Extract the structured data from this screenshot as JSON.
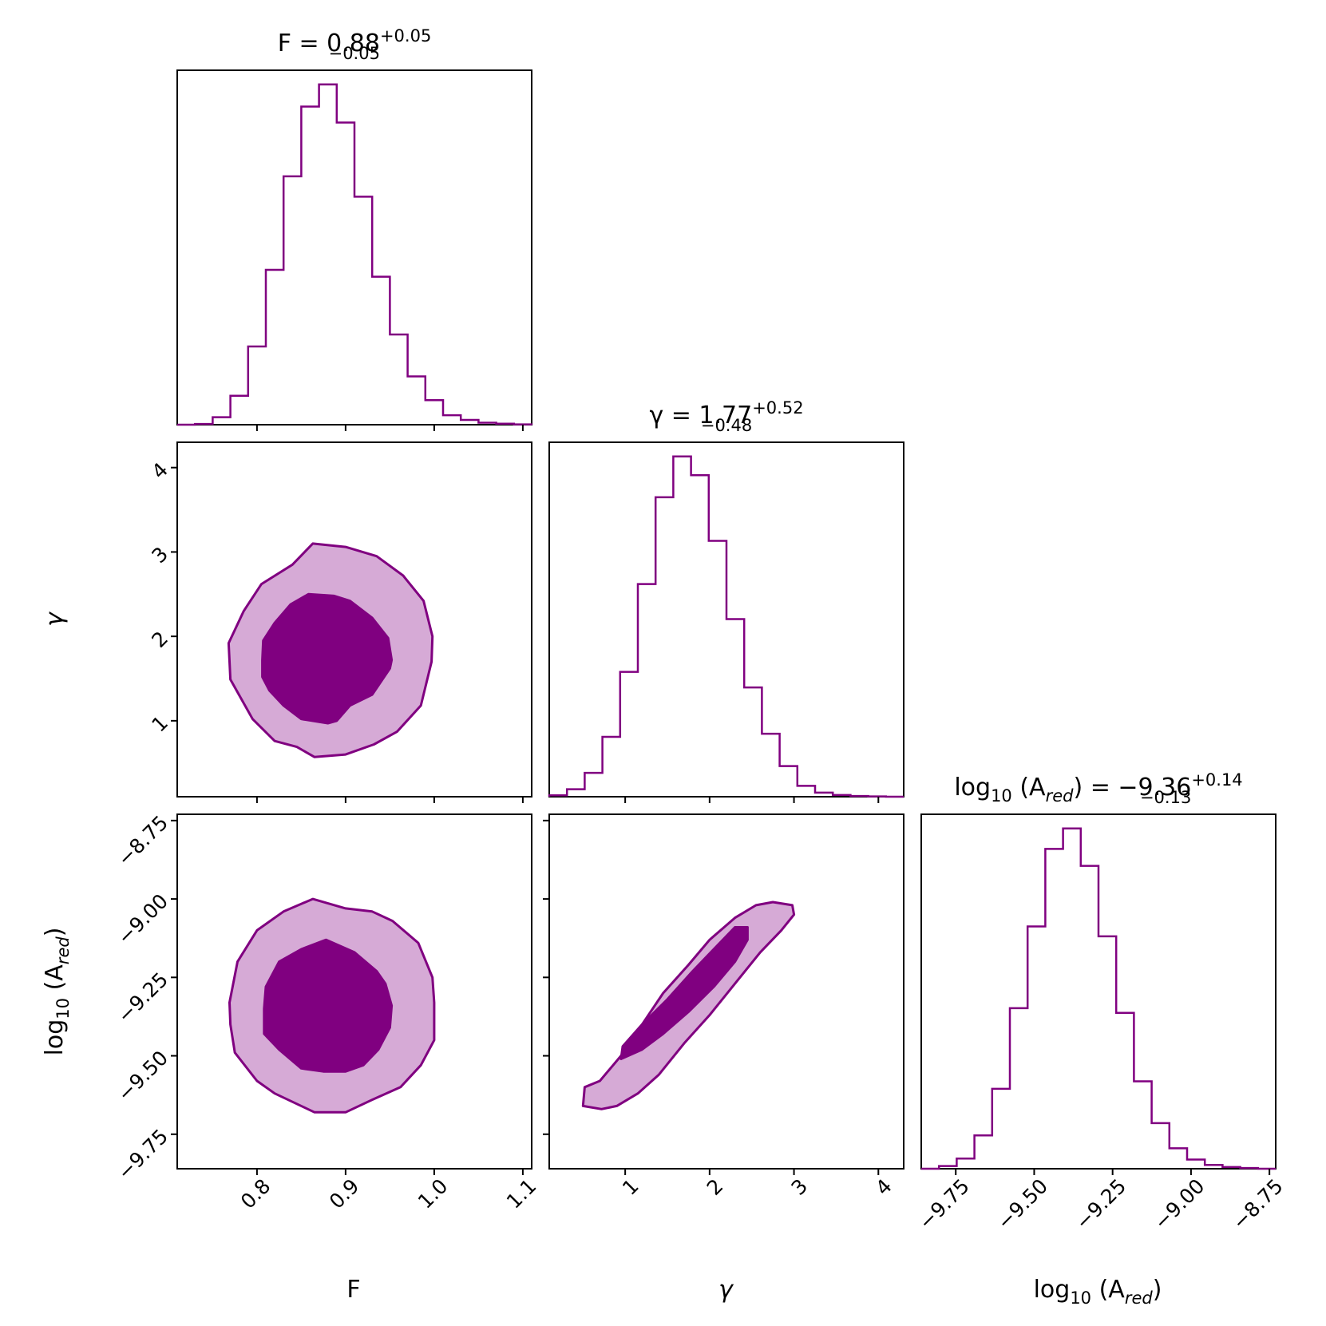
{
  "chart_data": {
    "type": "corner",
    "color": "#800080",
    "light_color": "#d6aad6",
    "parameters": [
      {
        "key": "F",
        "label_main": "F",
        "range": [
          0.71,
          1.11
        ],
        "ticks": [
          0.8,
          0.9,
          1.0,
          1.1
        ],
        "tick_labels": [
          "0.8",
          "0.9",
          "1.0",
          "1.1"
        ]
      },
      {
        "key": "gamma",
        "label_main": "γ",
        "range": [
          0.1,
          4.3
        ],
        "ticks": [
          1,
          2,
          3,
          4
        ],
        "tick_labels": [
          "1",
          "2",
          "3",
          "4"
        ]
      },
      {
        "key": "log10_A_red",
        "label_main": "log",
        "label_sub": "10",
        "label_tail": " (A",
        "label_sub2": "red",
        "label_end": ")",
        "range": [
          -9.86,
          -8.73
        ],
        "ticks": [
          -9.75,
          -9.5,
          -9.25,
          -9.0,
          -8.75
        ],
        "tick_labels": [
          "−9.75",
          "−9.50",
          "−9.25",
          "−9.00",
          "−8.75"
        ]
      }
    ],
    "titles": [
      {
        "lhs": "F = ",
        "value": "0.88",
        "plus": "+0.05",
        "minus": "−0.05"
      },
      {
        "lhs": "γ = ",
        "value": "1.77",
        "plus": "+0.52",
        "minus": "−0.48"
      },
      {
        "lhs": "log",
        "lhs_sub": "10",
        "lhs_mid": " (A",
        "lhs_sub2": "red",
        "lhs_tail": ") = ",
        "value": "−9.36",
        "plus": "+0.14",
        "minus": "−0.13"
      }
    ],
    "histograms": [
      {
        "param": "F",
        "edges": [
          0.71,
          0.73,
          0.75,
          0.77,
          0.79,
          0.81,
          0.83,
          0.85,
          0.87,
          0.89,
          0.91,
          0.93,
          0.95,
          0.97,
          0.99,
          1.01,
          1.03,
          1.05,
          1.07,
          1.09,
          1.11
        ],
        "values": [
          0.0,
          0.002,
          0.022,
          0.085,
          0.23,
          0.455,
          0.73,
          0.935,
          1.0,
          0.888,
          0.67,
          0.435,
          0.265,
          0.142,
          0.072,
          0.028,
          0.014,
          0.006,
          0.003,
          0.001
        ]
      },
      {
        "param": "gamma",
        "edges": [
          0.1,
          0.31,
          0.52,
          0.73,
          0.94,
          1.15,
          1.36,
          1.57,
          1.78,
          1.99,
          2.2,
          2.41,
          2.62,
          2.83,
          3.04,
          3.25,
          3.46,
          3.67,
          3.88,
          4.09,
          4.3
        ],
        "values": [
          0.004,
          0.022,
          0.07,
          0.176,
          0.367,
          0.625,
          0.88,
          1.0,
          0.945,
          0.752,
          0.522,
          0.321,
          0.185,
          0.09,
          0.032,
          0.012,
          0.005,
          0.002,
          0.001,
          0.0
        ]
      },
      {
        "param": "log10_A_red",
        "edges": [
          -9.86,
          -9.8035,
          -9.747,
          -9.6905,
          -9.634,
          -9.5775,
          -9.521,
          -9.4645,
          -9.408,
          -9.3515,
          -9.295,
          -9.2385,
          -9.182,
          -9.1255,
          -9.069,
          -9.0125,
          -8.956,
          -8.8995,
          -8.843,
          -8.7865,
          -8.73
        ],
        "values": [
          0.0,
          0.008,
          0.03,
          0.098,
          0.235,
          0.472,
          0.712,
          0.94,
          1.0,
          0.89,
          0.683,
          0.458,
          0.257,
          0.134,
          0.06,
          0.027,
          0.011,
          0.005,
          0.002,
          0.0
        ]
      }
    ],
    "contours": [
      {
        "x_param": "F",
        "y_param": "gamma",
        "outer": [
          [
            0.768,
            1.92
          ],
          [
            0.785,
            2.3
          ],
          [
            0.805,
            2.62
          ],
          [
            0.84,
            2.85
          ],
          [
            0.863,
            3.1
          ],
          [
            0.9,
            3.06
          ],
          [
            0.935,
            2.95
          ],
          [
            0.965,
            2.72
          ],
          [
            0.988,
            2.42
          ],
          [
            0.998,
            2.0
          ],
          [
            0.997,
            1.7
          ],
          [
            0.985,
            1.18
          ],
          [
            0.958,
            0.87
          ],
          [
            0.932,
            0.72
          ],
          [
            0.9,
            0.6
          ],
          [
            0.865,
            0.57
          ],
          [
            0.845,
            0.69
          ],
          [
            0.82,
            0.76
          ],
          [
            0.795,
            1.02
          ],
          [
            0.77,
            1.49
          ]
        ],
        "inner": [
          [
            0.806,
            1.72
          ],
          [
            0.807,
            1.95
          ],
          [
            0.82,
            2.16
          ],
          [
            0.838,
            2.38
          ],
          [
            0.858,
            2.5
          ],
          [
            0.887,
            2.48
          ],
          [
            0.905,
            2.42
          ],
          [
            0.93,
            2.22
          ],
          [
            0.948,
            1.98
          ],
          [
            0.952,
            1.72
          ],
          [
            0.95,
            1.62
          ],
          [
            0.93,
            1.31
          ],
          [
            0.905,
            1.18
          ],
          [
            0.89,
            1.0
          ],
          [
            0.88,
            0.97
          ],
          [
            0.85,
            1.02
          ],
          [
            0.83,
            1.18
          ],
          [
            0.814,
            1.36
          ],
          [
            0.806,
            1.52
          ]
        ]
      },
      {
        "x_param": "F",
        "y_param": "log10_A_red",
        "outer": [
          [
            0.769,
            -9.33
          ],
          [
            0.778,
            -9.2
          ],
          [
            0.8,
            -9.1
          ],
          [
            0.83,
            -9.04
          ],
          [
            0.863,
            -9.0
          ],
          [
            0.9,
            -9.03
          ],
          [
            0.93,
            -9.04
          ],
          [
            0.953,
            -9.07
          ],
          [
            0.982,
            -9.14
          ],
          [
            0.998,
            -9.25
          ],
          [
            1.0,
            -9.33
          ],
          [
            1.0,
            -9.45
          ],
          [
            0.985,
            -9.53
          ],
          [
            0.962,
            -9.6
          ],
          [
            0.93,
            -9.64
          ],
          [
            0.9,
            -9.68
          ],
          [
            0.865,
            -9.68
          ],
          [
            0.82,
            -9.62
          ],
          [
            0.8,
            -9.58
          ],
          [
            0.775,
            -9.49
          ],
          [
            0.77,
            -9.4
          ]
        ],
        "inner": [
          [
            0.808,
            -9.35
          ],
          [
            0.81,
            -9.28
          ],
          [
            0.825,
            -9.2
          ],
          [
            0.85,
            -9.16
          ],
          [
            0.878,
            -9.13
          ],
          [
            0.91,
            -9.17
          ],
          [
            0.935,
            -9.23
          ],
          [
            0.945,
            -9.27
          ],
          [
            0.952,
            -9.34
          ],
          [
            0.95,
            -9.41
          ],
          [
            0.937,
            -9.48
          ],
          [
            0.92,
            -9.53
          ],
          [
            0.9,
            -9.55
          ],
          [
            0.875,
            -9.55
          ],
          [
            0.85,
            -9.54
          ],
          [
            0.825,
            -9.48
          ],
          [
            0.808,
            -9.43
          ]
        ]
      },
      {
        "x_param": "gamma",
        "y_param": "log10_A_red",
        "outer": [
          [
            0.5,
            -9.66
          ],
          [
            0.72,
            -9.67
          ],
          [
            0.9,
            -9.66
          ],
          [
            1.15,
            -9.62
          ],
          [
            1.4,
            -9.56
          ],
          [
            1.7,
            -9.46
          ],
          [
            2.0,
            -9.37
          ],
          [
            2.3,
            -9.27
          ],
          [
            2.6,
            -9.17
          ],
          [
            2.85,
            -9.1
          ],
          [
            3.0,
            -9.05
          ],
          [
            2.98,
            -9.02
          ],
          [
            2.75,
            -9.01
          ],
          [
            2.55,
            -9.02
          ],
          [
            2.3,
            -9.06
          ],
          [
            2.0,
            -9.13
          ],
          [
            1.75,
            -9.21
          ],
          [
            1.45,
            -9.3
          ],
          [
            1.2,
            -9.4
          ],
          [
            0.95,
            -9.5
          ],
          [
            0.7,
            -9.58
          ],
          [
            0.52,
            -9.6
          ]
        ],
        "inner": [
          [
            0.95,
            -9.51
          ],
          [
            1.2,
            -9.48
          ],
          [
            1.45,
            -9.43
          ],
          [
            1.75,
            -9.36
          ],
          [
            2.05,
            -9.28
          ],
          [
            2.3,
            -9.2
          ],
          [
            2.45,
            -9.13
          ],
          [
            2.45,
            -9.09
          ],
          [
            2.3,
            -9.09
          ],
          [
            2.05,
            -9.16
          ],
          [
            1.8,
            -9.23
          ],
          [
            1.5,
            -9.32
          ],
          [
            1.2,
            -9.4
          ],
          [
            0.97,
            -9.47
          ]
        ]
      }
    ]
  }
}
